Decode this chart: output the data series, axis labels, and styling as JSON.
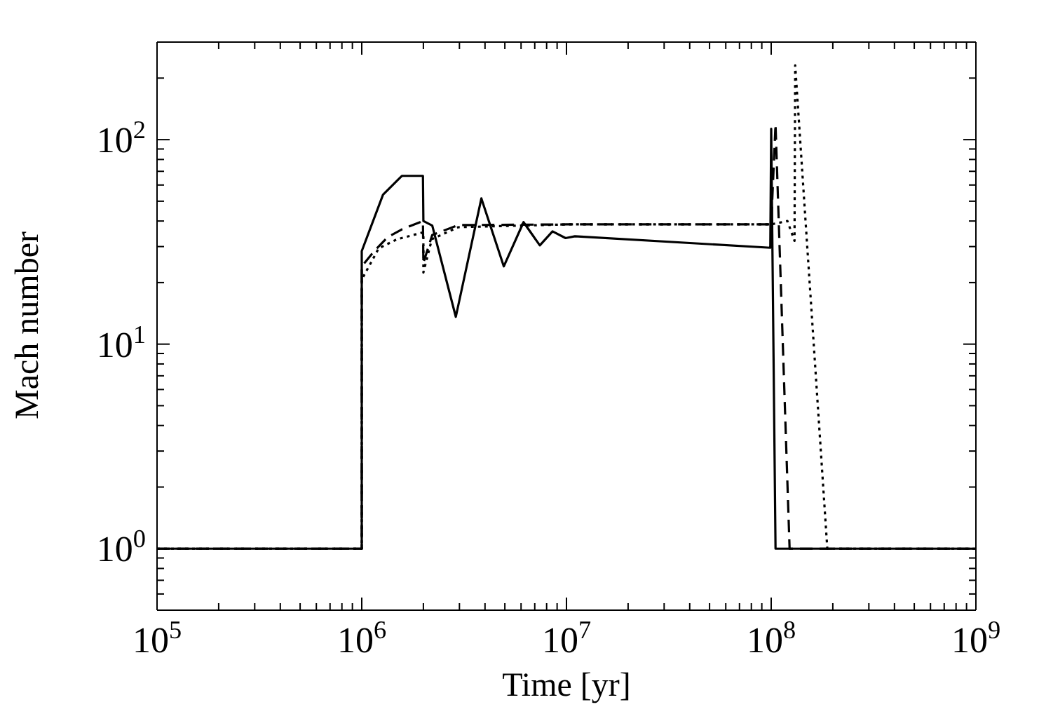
{
  "chart_data": {
    "type": "line",
    "xlabel": "Time [yr]",
    "ylabel": "Mach number",
    "log": "xy",
    "grid": false,
    "marker": "none",
    "xlim": [
      100000,
      1000000000
    ],
    "ylim": [
      0.5,
      300
    ],
    "xticks": [
      {
        "value": 100000,
        "label": "10$^{5}$"
      },
      {
        "value": 200000,
        "label": null
      },
      {
        "value": 300000,
        "label": null
      },
      {
        "value": 400000,
        "label": null
      },
      {
        "value": 500000,
        "label": null
      },
      {
        "value": 600000,
        "label": null
      },
      {
        "value": 700000,
        "label": null
      },
      {
        "value": 800000,
        "label": null
      },
      {
        "value": 900000,
        "label": null
      },
      {
        "value": 1000000,
        "label": "10$^{6}$"
      },
      {
        "value": 2000000,
        "label": null
      },
      {
        "value": 3000000,
        "label": null
      },
      {
        "value": 4000000,
        "label": null
      },
      {
        "value": 5000000,
        "label": null
      },
      {
        "value": 6000000,
        "label": null
      },
      {
        "value": 7000000,
        "label": null
      },
      {
        "value": 8000000,
        "label": null
      },
      {
        "value": 9000000,
        "label": null
      },
      {
        "value": 10000000,
        "label": "10$^{7}$"
      },
      {
        "value": 20000000,
        "label": null
      },
      {
        "value": 30000000,
        "label": null
      },
      {
        "value": 40000000,
        "label": null
      },
      {
        "value": 50000000,
        "label": null
      },
      {
        "value": 60000000,
        "label": null
      },
      {
        "value": 70000000,
        "label": null
      },
      {
        "value": 80000000,
        "label": null
      },
      {
        "value": 90000000,
        "label": null
      },
      {
        "value": 100000000,
        "label": "10$^{8}$"
      },
      {
        "value": 200000000,
        "label": null
      },
      {
        "value": 300000000,
        "label": null
      },
      {
        "value": 400000000,
        "label": null
      },
      {
        "value": 500000000,
        "label": null
      },
      {
        "value": 600000000,
        "label": null
      },
      {
        "value": 700000000,
        "label": null
      },
      {
        "value": 800000000,
        "label": null
      },
      {
        "value": 900000000,
        "label": null
      },
      {
        "value": 1000000000,
        "label": "10$^{9}$"
      }
    ],
    "yticks": [
      {
        "value": 0.6,
        "label": null
      },
      {
        "value": 0.7,
        "label": null
      },
      {
        "value": 0.8,
        "label": null
      },
      {
        "value": 0.9,
        "label": null
      },
      {
        "value": 1,
        "label": "10$^{0}$"
      },
      {
        "value": 2,
        "label": null
      },
      {
        "value": 3,
        "label": null
      },
      {
        "value": 4,
        "label": null
      },
      {
        "value": 5,
        "label": null
      },
      {
        "value": 6,
        "label": null
      },
      {
        "value": 7,
        "label": null
      },
      {
        "value": 8,
        "label": null
      },
      {
        "value": 9,
        "label": null
      },
      {
        "value": 10,
        "label": "10$^{1}$"
      },
      {
        "value": 20,
        "label": null
      },
      {
        "value": 30,
        "label": null
      },
      {
        "value": 40,
        "label": null
      },
      {
        "value": 50,
        "label": null
      },
      {
        "value": 60,
        "label": null
      },
      {
        "value": 70,
        "label": null
      },
      {
        "value": 80,
        "label": null
      },
      {
        "value": 90,
        "label": null
      },
      {
        "value": 100,
        "label": "10$^{2}$"
      },
      {
        "value": 200,
        "label": null
      },
      {
        "value": 300,
        "label": null
      }
    ],
    "series": [
      {
        "color": "#000000",
        "line_style": "solid",
        "x": [
          100000,
          1000000,
          1000000,
          1270000,
          1570000,
          1990000,
          2000000,
          2210000,
          2880000,
          3840000,
          4940000,
          6170000,
          7410000,
          8550000,
          9900000,
          11000000,
          99000000,
          100000000,
          105000000,
          1000000000
        ],
        "values": [
          1,
          1,
          28.5,
          53.8,
          66.5,
          66.5,
          40,
          38,
          13.6,
          51.6,
          24,
          39.5,
          30.4,
          35.6,
          33,
          33.7,
          29.6,
          113,
          1,
          1
        ]
      },
      {
        "color": "#000000",
        "line_style": "dashed",
        "x": [
          100000,
          1000000,
          1000000,
          1150000,
          1340000,
          1570000,
          1990000,
          2000000,
          2210000,
          2960000,
          10000000,
          100000000,
          105000000,
          123000000,
          1000000000
        ],
        "values": [
          1,
          1,
          24,
          28.5,
          33.4,
          36.4,
          40,
          25,
          34.2,
          38.2,
          38.5,
          38.5,
          119,
          1,
          1
        ]
      },
      {
        "color": "#000000",
        "line_style": "dotted",
        "x": [
          100000,
          1000000,
          1000000,
          1210000,
          1490000,
          2000000,
          2000000,
          2200000,
          2960000,
          10000000,
          100000000,
          120000000,
          130000000,
          131000000,
          188000000,
          1000000000
        ],
        "values": [
          1,
          1,
          20.7,
          29.4,
          32.6,
          35.2,
          22.4,
          32.6,
          37.3,
          38.5,
          38.5,
          40,
          32,
          231,
          1,
          1
        ]
      }
    ]
  }
}
